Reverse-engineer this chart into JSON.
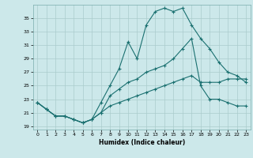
{
  "xlabel": "Humidex (Indice chaleur)",
  "bg_color": "#cce8ea",
  "grid_color": "#aacccc",
  "line_color": "#1a7070",
  "xlim": [
    -0.5,
    23.5
  ],
  "ylim": [
    18.5,
    37.0
  ],
  "xticks": [
    0,
    1,
    2,
    3,
    4,
    5,
    6,
    7,
    8,
    9,
    10,
    11,
    12,
    13,
    14,
    15,
    16,
    17,
    18,
    19,
    20,
    21,
    22,
    23
  ],
  "yticks": [
    19,
    21,
    23,
    25,
    27,
    29,
    31,
    33,
    35
  ],
  "line1_x": [
    0,
    1,
    2,
    3,
    4,
    5,
    6,
    7,
    8,
    9,
    10,
    11,
    12,
    13,
    14,
    15,
    16,
    17,
    18,
    19,
    20,
    21,
    22,
    23
  ],
  "line1_y": [
    22.5,
    21.5,
    20.5,
    20.5,
    20.0,
    19.5,
    20.0,
    22.5,
    25.0,
    27.5,
    31.5,
    29.0,
    34.0,
    36.0,
    36.5,
    36.0,
    36.5,
    34.0,
    32.0,
    30.5,
    28.5,
    27.0,
    26.5,
    25.5
  ],
  "line2_x": [
    0,
    1,
    2,
    3,
    4,
    5,
    6,
    7,
    8,
    9,
    10,
    11,
    12,
    13,
    14,
    15,
    16,
    17,
    18,
    19,
    20,
    21,
    22,
    23
  ],
  "line2_y": [
    22.5,
    21.5,
    20.5,
    20.5,
    20.0,
    19.5,
    20.0,
    21.0,
    23.5,
    24.5,
    25.5,
    26.0,
    27.0,
    27.5,
    28.0,
    29.0,
    30.5,
    32.0,
    25.0,
    23.0,
    23.0,
    22.5,
    22.0,
    22.0
  ],
  "line3_x": [
    0,
    1,
    2,
    3,
    4,
    5,
    6,
    7,
    8,
    9,
    10,
    11,
    12,
    13,
    14,
    15,
    16,
    17,
    18,
    19,
    20,
    21,
    22,
    23
  ],
  "line3_y": [
    22.5,
    21.5,
    20.5,
    20.5,
    20.0,
    19.5,
    20.0,
    21.0,
    22.0,
    22.5,
    23.0,
    23.5,
    24.0,
    24.5,
    25.0,
    25.5,
    26.0,
    26.5,
    25.5,
    25.5,
    25.5,
    26.0,
    26.0,
    26.0
  ]
}
